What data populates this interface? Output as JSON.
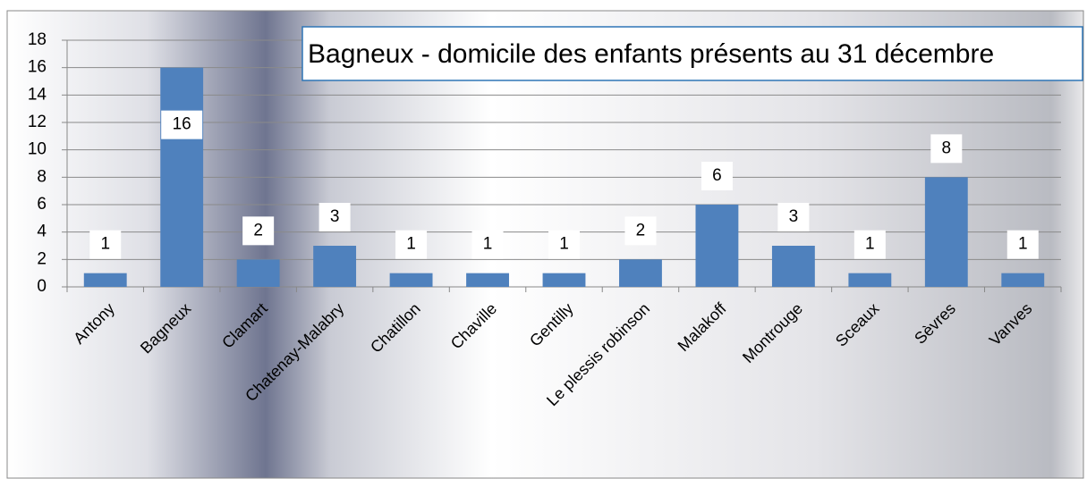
{
  "chart_data": {
    "type": "bar",
    "title": "Bagneux - domicile des enfants présents au 31 décembre",
    "categories": [
      "Antony",
      "Bagneux",
      "Clamart",
      "Chatenay-Malabry",
      "Chatillon",
      "Chaville",
      "Gentilly",
      "Le plessis robinson",
      "Malakoff",
      "Montrouge",
      "Sceaux",
      "Sèvres",
      "Vanves"
    ],
    "values": [
      1,
      16,
      2,
      3,
      1,
      1,
      1,
      2,
      6,
      3,
      1,
      8,
      1
    ],
    "color": "#4f81bd",
    "ylim": [
      0,
      18
    ],
    "yticks": [
      0,
      2,
      4,
      6,
      8,
      10,
      12,
      14,
      16,
      18
    ],
    "grid": true
  }
}
